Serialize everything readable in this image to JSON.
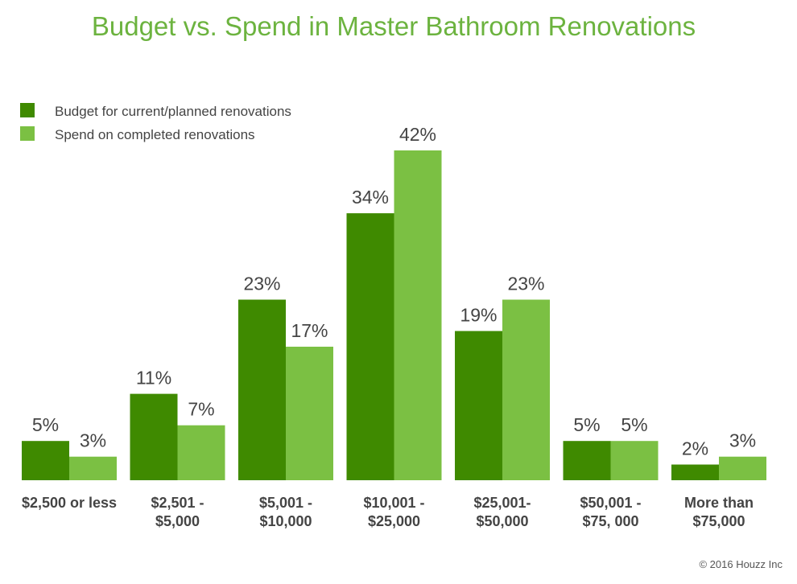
{
  "chart_data": {
    "type": "bar",
    "title": "Budget vs. Spend in Master Bathroom Renovations",
    "xlabel": "",
    "ylabel": "",
    "ylim": [
      0,
      42
    ],
    "grid": false,
    "legend_position": "top-left",
    "value_suffix": "%",
    "categories": [
      [
        "$2,500 or less"
      ],
      [
        "$2,501 -",
        "$5,000"
      ],
      [
        "$5,001 -",
        "$10,000"
      ],
      [
        "$10,001 -",
        "$25,000"
      ],
      [
        "$25,001-",
        "$50,000"
      ],
      [
        "$50,001 -",
        "$75, 000"
      ],
      [
        "More than",
        "$75,000"
      ]
    ],
    "series": [
      {
        "name": "Budget for current/planned renovations",
        "color": "#3f8a00",
        "values": [
          5,
          11,
          23,
          34,
          19,
          5,
          2
        ]
      },
      {
        "name": "Spend on completed renovations",
        "color": "#7bc043",
        "values": [
          3,
          7,
          17,
          42,
          23,
          5,
          3
        ]
      }
    ]
  },
  "credit": "© 2016 Houzz Inc"
}
